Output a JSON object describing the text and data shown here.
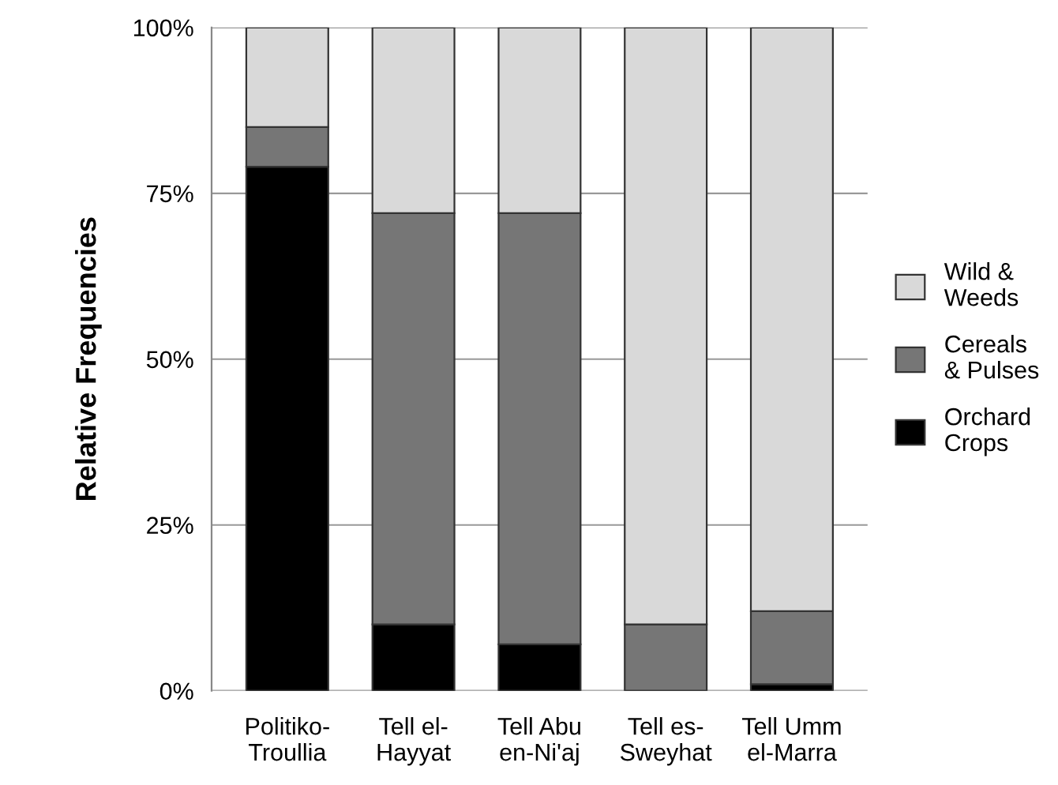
{
  "chart_data": {
    "type": "bar",
    "stacked": true,
    "ylabel": "Relative Frequencies",
    "categories": [
      "Politiko-\nTroullia",
      "Tell el-\nHayyat",
      "Tell Abu\nen-Ni'aj",
      "Tell es-\nSweyhat",
      "Tell Umm\nel-Marra"
    ],
    "series": [
      {
        "name": "Orchard\nCrops",
        "color": "#000000",
        "values": [
          79,
          10,
          7,
          0,
          1
        ]
      },
      {
        "name": "Cereals\n& Pulses",
        "color": "#767676",
        "values": [
          6,
          62,
          65,
          10,
          11
        ]
      },
      {
        "name": "Wild &\nWeeds",
        "color": "#d9d9d9",
        "values": [
          15,
          28,
          28,
          90,
          88
        ]
      }
    ],
    "ylim": [
      0,
      100
    ],
    "yticks": [
      {
        "value": 0,
        "label": "0%"
      },
      {
        "value": 25,
        "label": "25%"
      },
      {
        "value": 50,
        "label": "50%"
      },
      {
        "value": 75,
        "label": "75%"
      },
      {
        "value": 100,
        "label": "100%"
      }
    ],
    "grid": "y",
    "legend": "right"
  }
}
